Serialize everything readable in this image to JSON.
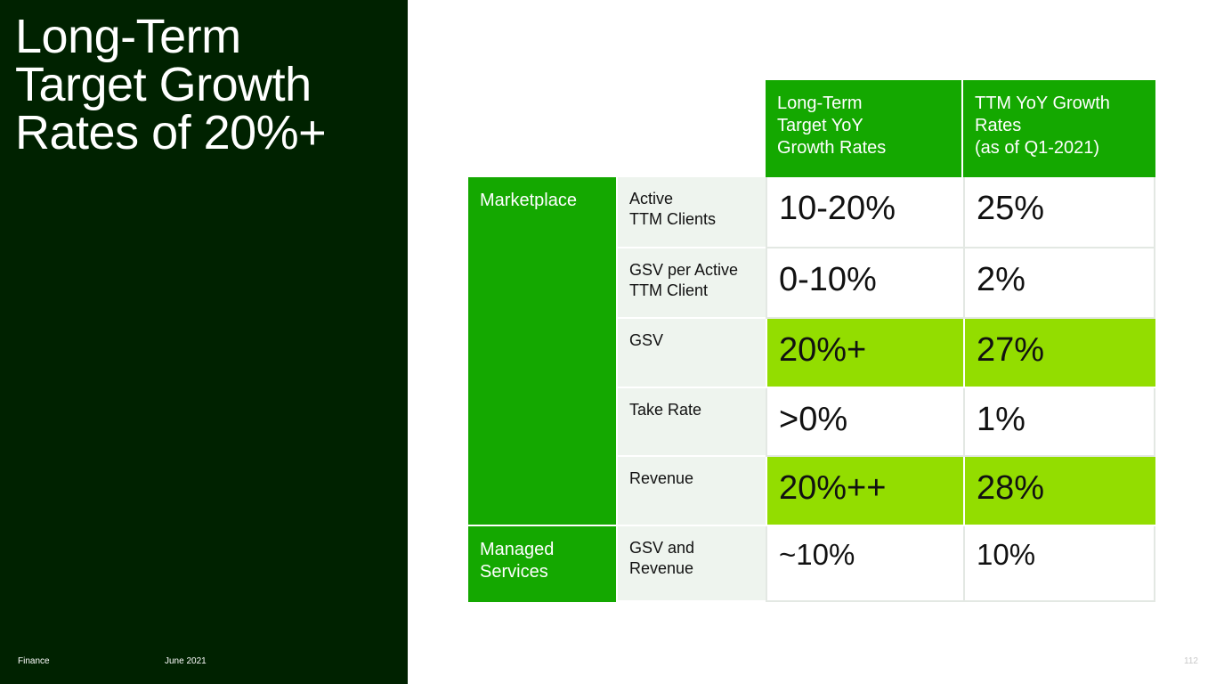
{
  "title": {
    "lines": [
      "Long-Term",
      "Target Growth",
      "Rates of 20%+"
    ]
  },
  "footer": {
    "left": "Finance",
    "date": "June 2021",
    "page": "112"
  },
  "colors": {
    "panel": "#002200",
    "header_green": "#14a800",
    "highlight_green": "#93dd00",
    "label_bg": "#eef4ee"
  },
  "table": {
    "headers": [
      [
        "Long-Term",
        "Target YoY",
        "Growth Rates"
      ],
      [
        "TTM YoY Growth",
        "Rates",
        "(as of Q1-2021)"
      ]
    ],
    "groups": [
      [
        "Marketplace"
      ],
      [
        "Managed",
        "Services"
      ]
    ],
    "rows": [
      {
        "label": [
          "Active",
          "TTM Clients"
        ],
        "target": "10-20%",
        "ttm": "25%"
      },
      {
        "label": [
          "GSV per Active",
          "TTM Client"
        ],
        "target": "0-10%",
        "ttm": "2%"
      },
      {
        "label": [
          "GSV"
        ],
        "target": "20%+",
        "ttm": "27%"
      },
      {
        "label": [
          "Take Rate"
        ],
        "target": ">0%",
        "ttm": "1%"
      },
      {
        "label": [
          "Revenue"
        ],
        "target": "20%++",
        "ttm": "28%"
      },
      {
        "label": [
          "GSV and",
          "Revenue"
        ],
        "target": "~10%",
        "ttm": "10%"
      }
    ]
  }
}
